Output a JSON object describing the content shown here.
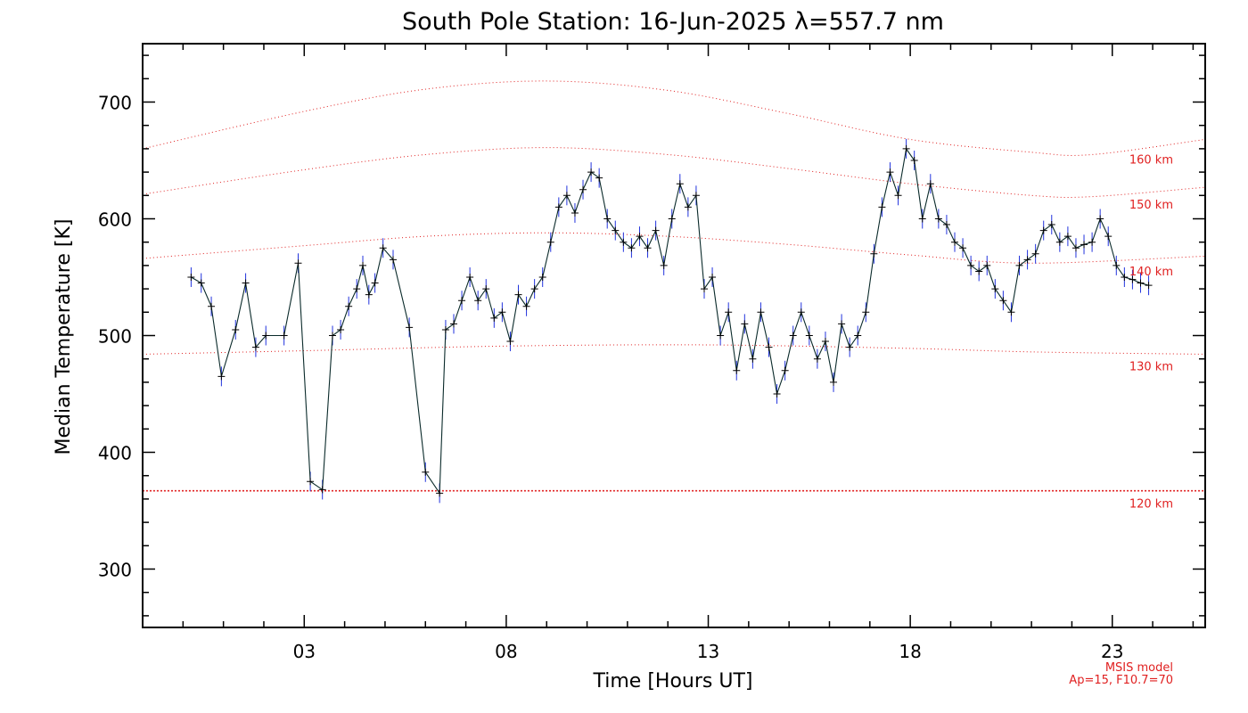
{
  "chart_data": {
    "type": "line",
    "title": "South Pole Station: 16-Jun-2025 λ=557.7 nm",
    "xlabel": "Time [Hours UT]",
    "ylabel": "Median Temperature [K]",
    "xlim": [
      -1.0,
      25.3
    ],
    "ylim": [
      250,
      750
    ],
    "x_ticks": [
      3,
      8,
      13,
      18,
      23
    ],
    "x_tick_labels": [
      "03",
      "08",
      "13",
      "18",
      "23"
    ],
    "y_ticks": [
      300,
      400,
      500,
      600,
      700
    ],
    "y_tick_labels": [
      "300",
      "400",
      "500",
      "600",
      "700"
    ],
    "grid": false,
    "colors": {
      "data_line": "#0a2a2a",
      "error_bars": "#2233dd",
      "markers": "#000000",
      "model_curves": "#e02020"
    },
    "series": [
      {
        "x": [
          0.2,
          0.45,
          0.7,
          0.95,
          1.3,
          1.55,
          1.8,
          2.05,
          2.5,
          2.85,
          3.15,
          3.45,
          3.7,
          3.9,
          4.1,
          4.3,
          4.45,
          4.6,
          4.75,
          4.95,
          5.2,
          5.6,
          6.0,
          6.35,
          6.5,
          6.7,
          6.9,
          7.1,
          7.3,
          7.5,
          7.7,
          7.9,
          8.1,
          8.3,
          8.5,
          8.7,
          8.9,
          9.1,
          9.3,
          9.5,
          9.7,
          9.9,
          10.1,
          10.3,
          10.5,
          10.7,
          10.9,
          11.1,
          11.3,
          11.5,
          11.7,
          11.9,
          12.1,
          12.3,
          12.5,
          12.7,
          12.9,
          13.1,
          13.3,
          13.5,
          13.7,
          13.9,
          14.1,
          14.3,
          14.5,
          14.7,
          14.9,
          15.1,
          15.3,
          15.5,
          15.7,
          15.9,
          16.1,
          16.3,
          16.5,
          16.7,
          16.9,
          17.1,
          17.3,
          17.5,
          17.7,
          17.9,
          18.1,
          18.3,
          18.5,
          18.7,
          18.9,
          19.1,
          19.3,
          19.5,
          19.7,
          19.9,
          20.1,
          20.3,
          20.5,
          20.7,
          20.9,
          21.1,
          21.3,
          21.5,
          21.7,
          21.9,
          22.1,
          22.3,
          22.5,
          22.7,
          22.9,
          23.1,
          23.3,
          23.5,
          23.7,
          23.9
        ],
        "values": [
          550,
          545,
          525,
          465,
          505,
          545,
          490,
          500,
          500,
          562,
          375,
          368,
          500,
          505,
          525,
          540,
          560,
          535,
          545,
          575,
          565,
          507,
          383,
          365,
          505,
          510,
          530,
          550,
          530,
          540,
          515,
          520,
          495,
          535,
          525,
          540,
          550,
          580,
          610,
          620,
          605,
          625,
          640,
          635,
          600,
          590,
          580,
          575,
          585,
          575,
          590,
          560,
          600,
          630,
          610,
          620,
          540,
          550,
          500,
          520,
          470,
          510,
          480,
          520,
          490,
          450,
          470,
          500,
          520,
          500,
          480,
          495,
          460,
          510,
          490,
          500,
          520,
          570,
          610,
          640,
          620,
          660,
          650,
          600,
          630,
          600,
          595,
          580,
          575,
          560,
          555,
          560,
          540,
          530,
          520,
          560,
          565,
          570,
          590,
          595,
          580,
          585,
          575,
          578,
          580,
          600,
          585,
          560,
          550,
          548,
          545,
          543
        ]
      }
    ],
    "model_curves": [
      {
        "name": "120 km",
        "x": [
          -1,
          25.3
        ],
        "y": [
          367,
          367
        ]
      },
      {
        "name": "130 km",
        "x": [
          -1,
          3,
          8,
          13,
          18,
          21,
          25.3
        ],
        "y": [
          484,
          487,
          491,
          492,
          489,
          486,
          484
        ]
      },
      {
        "name": "140 km",
        "x": [
          -1,
          3,
          6,
          9,
          12,
          15,
          18,
          21,
          25.3
        ],
        "y": [
          566,
          577,
          585,
          588,
          585,
          578,
          569,
          562,
          568
        ]
      },
      {
        "name": "150 km",
        "x": [
          -1,
          3,
          6,
          9,
          12,
          15,
          18,
          21,
          22.5,
          25.3
        ],
        "y": [
          621,
          642,
          655,
          661,
          655,
          643,
          630,
          620,
          619,
          627
        ]
      },
      {
        "name": "160 km",
        "x": [
          -1,
          3,
          6,
          9,
          12,
          15,
          18,
          21,
          22.5,
          25.3
        ],
        "y": [
          660,
          692,
          711,
          718,
          710,
          690,
          668,
          657,
          655,
          668
        ]
      }
    ],
    "model_note_line1": "MSIS model",
    "model_note_line2": "Ap=15, F10.7=70"
  }
}
